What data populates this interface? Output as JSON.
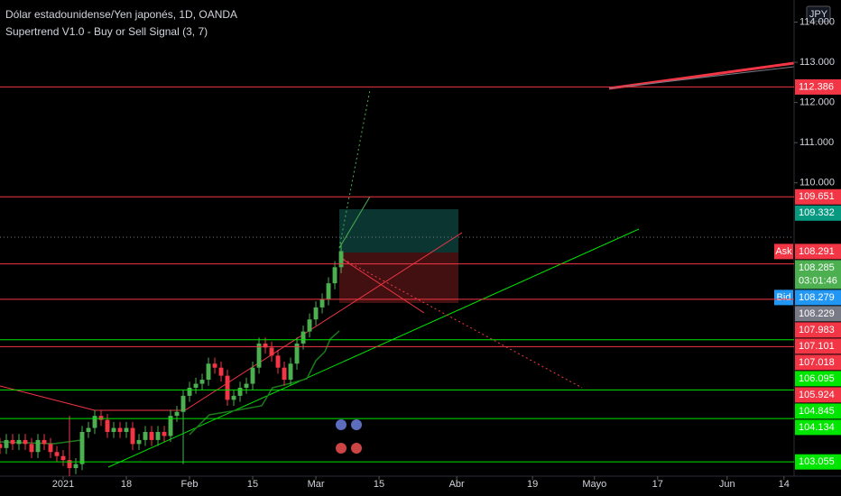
{
  "chart_data": {
    "type": "candlestick",
    "title": "Dólar estadounidense/Yen japonés, 1D, OANDA",
    "subtitle": "Supertrend V1.0 - Buy or Sell Signal (3, 7)",
    "currency": "JPY",
    "up_color": "#4caf50",
    "down_color": "#f23645",
    "x": [
      -10,
      -9,
      -8,
      -7,
      -6,
      -5,
      -4,
      -3,
      -2,
      -1,
      0,
      1,
      2,
      3,
      4,
      5,
      6,
      7,
      8,
      9,
      10,
      11,
      12,
      13,
      14,
      15,
      16,
      17,
      18,
      19,
      20,
      21,
      22,
      23,
      24,
      25,
      26,
      27,
      28,
      29,
      30,
      31,
      32,
      33,
      34,
      35,
      36,
      37,
      38,
      39,
      40,
      41,
      42,
      43,
      44
    ],
    "open": [
      103.5,
      103.4,
      103.6,
      103.5,
      103.6,
      103.5,
      103.3,
      103.6,
      103.5,
      103.3,
      103.2,
      103.1,
      102.9,
      103.0,
      103.8,
      103.9,
      104.2,
      104.1,
      103.8,
      103.9,
      103.8,
      103.9,
      103.5,
      103.6,
      103.8,
      103.6,
      103.8,
      103.7,
      104.2,
      104.3,
      104.7,
      104.9,
      105.0,
      105.1,
      105.5,
      105.4,
      105.2,
      104.6,
      104.7,
      104.9,
      105.0,
      105.4,
      106.0,
      105.9,
      105.7,
      105.4,
      105.1,
      105.5,
      106.0,
      106.3,
      106.6,
      106.9,
      107.1,
      107.5,
      107.9
    ],
    "high": [
      103.65,
      103.75,
      103.75,
      103.75,
      103.75,
      103.65,
      103.75,
      103.75,
      103.65,
      103.45,
      103.35,
      104.2,
      103.15,
      103.95,
      104.05,
      104.35,
      104.35,
      104.25,
      104.05,
      104.05,
      104.05,
      104.05,
      103.75,
      103.95,
      103.95,
      103.95,
      103.95,
      104.35,
      104.45,
      104.85,
      105.05,
      105.15,
      105.25,
      105.65,
      105.65,
      105.55,
      105.35,
      104.85,
      105.05,
      105.15,
      105.55,
      106.15,
      106.15,
      106.05,
      105.85,
      105.55,
      105.65,
      106.15,
      106.45,
      106.75,
      107.05,
      107.25,
      107.65,
      108.05,
      108.5
    ],
    "low": [
      103.25,
      103.25,
      103.35,
      103.35,
      103.35,
      103.15,
      103.15,
      103.35,
      103.15,
      103.05,
      102.95,
      102.7,
      102.75,
      102.85,
      103.65,
      103.75,
      103.95,
      103.65,
      103.65,
      103.65,
      103.65,
      103.35,
      103.35,
      103.45,
      103.45,
      103.45,
      103.55,
      103.55,
      104.05,
      103.0,
      104.55,
      104.75,
      104.85,
      104.95,
      105.25,
      105.05,
      104.45,
      104.45,
      104.55,
      104.75,
      104.85,
      105.25,
      105.75,
      105.55,
      105.25,
      104.95,
      104.95,
      105.35,
      105.85,
      106.15,
      106.45,
      106.75,
      106.95,
      107.35,
      107.75
    ],
    "close": [
      103.4,
      103.6,
      103.5,
      103.6,
      103.5,
      103.3,
      103.6,
      103.5,
      103.3,
      103.2,
      103.1,
      102.9,
      103.0,
      103.8,
      103.9,
      104.2,
      104.1,
      103.8,
      103.9,
      103.8,
      103.9,
      103.5,
      103.6,
      103.8,
      103.6,
      103.8,
      103.7,
      104.2,
      104.3,
      104.7,
      104.9,
      105.0,
      105.1,
      105.5,
      105.4,
      105.2,
      104.6,
      104.7,
      104.9,
      105.0,
      105.4,
      106.0,
      105.9,
      105.7,
      105.4,
      105.1,
      105.5,
      106.0,
      106.3,
      106.6,
      106.9,
      107.1,
      107.5,
      107.9,
      108.3
    ],
    "xlim": [
      -10,
      115.7
    ],
    "ylim": [
      102.7,
      114.55
    ],
    "xticks": [
      {
        "value": 0,
        "label": "2021"
      },
      {
        "value": 10,
        "label": "18"
      },
      {
        "value": 20,
        "label": "Feb"
      },
      {
        "value": 30,
        "label": "15"
      },
      {
        "value": 40,
        "label": "Mar"
      },
      {
        "value": 50,
        "label": "15"
      },
      {
        "value": 62.3,
        "label": "Abr"
      },
      {
        "value": 74.3,
        "label": "19"
      },
      {
        "value": 84.1,
        "label": "Mayo"
      },
      {
        "value": 94.1,
        "label": "17"
      },
      {
        "value": 105.1,
        "label": "Jun"
      },
      {
        "value": 114.1,
        "label": "14"
      }
    ],
    "yticks": [
      {
        "value": 110,
        "label": "110.000"
      },
      {
        "value": 111,
        "label": "111.000"
      },
      {
        "value": 112,
        "label": "112.000"
      },
      {
        "value": 113,
        "label": "113.000"
      },
      {
        "value": 114,
        "label": "114.000"
      }
    ],
    "price_levels": [
      {
        "value": 112.386,
        "color": "#f23645",
        "line": true
      },
      {
        "value": 109.651,
        "color": "#f23645",
        "line": true
      },
      {
        "value": 109.332,
        "color": "#089981",
        "line": false
      },
      {
        "value": 108.291,
        "color": "#f23645",
        "line": false,
        "tag": "Ask"
      },
      {
        "value": 108.285,
        "color": "#4caf50",
        "line": false,
        "sublabel": "03:01:46"
      },
      {
        "value": 108.279,
        "color": "#2196f3",
        "line": false,
        "tag": "Bid"
      },
      {
        "value": 108.229,
        "color": "#787b86",
        "line": false
      },
      {
        "value": 107.983,
        "color": "#f23645",
        "line": true
      },
      {
        "value": 107.101,
        "color": "#f23645",
        "line": true
      },
      {
        "value": 107.018,
        "color": "#f23645",
        "line": false
      },
      {
        "value": 106.095,
        "color": "#00e600",
        "line": true
      },
      {
        "value": 105.924,
        "color": "#f23645",
        "line": true
      },
      {
        "value": 104.845,
        "color": "#00e600",
        "line": true
      },
      {
        "value": 104.134,
        "color": "#00e600",
        "line": true
      },
      {
        "value": 103.055,
        "color": "#00e600",
        "line": true
      }
    ]
  }
}
